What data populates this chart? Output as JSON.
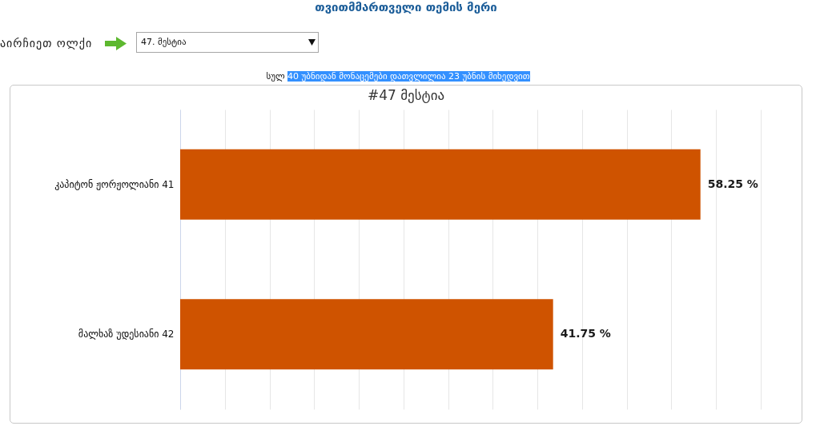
{
  "chart_data": {
    "type": "bar",
    "orientation": "horizontal",
    "title": "#47 მესტია",
    "subtitle": "სულ 40 უბნიდან მონაცემები დათვლილია 23 უბნის მიხედვით",
    "annotations": [
      "თვითმმართველი თემის მერი",
      "აირჩიეთ ოლქი",
      "47. მესტია"
    ],
    "categories": [
      "კაპიტონ ჟორჟოლიანი 41",
      "მალხაზ უდესიანი 42"
    ],
    "values": [
      58.25,
      41.75
    ],
    "color": "#cf5300",
    "value_labels": [
      "58.25 %",
      "41.75 %"
    ],
    "xlim": [
      0,
      65
    ],
    "xticks": [
      0,
      5,
      10,
      15,
      20,
      25,
      30,
      35,
      40,
      45,
      50,
      55,
      60,
      65
    ],
    "grid": "x",
    "tick_labels": "y"
  }
}
